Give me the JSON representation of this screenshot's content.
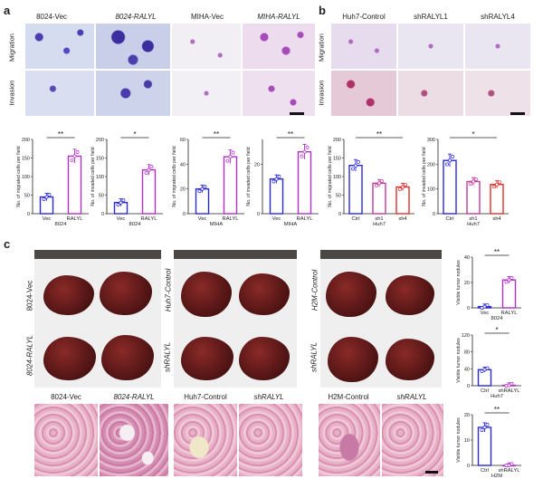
{
  "panel_a": {
    "letter": "a",
    "columns": [
      "8024-Vec",
      "8024-RALYL",
      "MIHA-Vec",
      "MIHA-RALYL"
    ],
    "rows": [
      "Migration",
      "Invasion"
    ]
  },
  "panel_b": {
    "letter": "b",
    "columns": [
      "Huh7-Control",
      "shRALYL1",
      "shRALYL4"
    ],
    "rows": [
      "Migration",
      "Invasion"
    ]
  },
  "panel_c": {
    "letter": "c",
    "groups": [
      {
        "top": "8024-Vec",
        "bottom": "8024-RALYL"
      },
      {
        "top": "Huh7-Control",
        "bottom": "shRALYL"
      },
      {
        "top": "H2M-Control",
        "bottom": "shRALYL"
      }
    ],
    "he_labels": [
      "8024-Vec",
      "8024-RALYL",
      "Huh7-Control",
      "shRALYL",
      "H2M-Control",
      "shRALYL"
    ]
  },
  "chart_data": [
    {
      "type": "bar",
      "categories": [
        "Vec",
        "RALYL"
      ],
      "values": [
        45,
        155
      ],
      "xlabel": "8024",
      "ylabel": "No. of migrated cells per field",
      "ylim": [
        0,
        200
      ],
      "sig": "**",
      "colors": [
        "#2a2ad8",
        "#b030c8"
      ]
    },
    {
      "type": "bar",
      "categories": [
        "Vec",
        "RALYL"
      ],
      "values": [
        30,
        118
      ],
      "xlabel": "8024",
      "ylabel": "No. of invaded cells per field",
      "ylim": [
        0,
        200
      ],
      "sig": "*",
      "colors": [
        "#2a2ad8",
        "#b030c8"
      ]
    },
    {
      "type": "bar",
      "categories": [
        "Vec",
        "RALYL"
      ],
      "values": [
        20,
        46
      ],
      "xlabel": "MIHA",
      "ylabel": "No. of migrated cells per field",
      "ylim": [
        0,
        60
      ],
      "sig": "**",
      "colors": [
        "#2a2ad8",
        "#b030c8"
      ]
    },
    {
      "type": "bar",
      "categories": [
        "Vec",
        "RALYL"
      ],
      "values": [
        14,
        25
      ],
      "xlabel": "MIHA",
      "ylabel": "No. of invaded cells per field",
      "ylim": [
        0,
        30
      ],
      "sig": "**",
      "colors": [
        "#2a2ad8",
        "#b030c8"
      ]
    },
    {
      "type": "bar",
      "categories": [
        "Ctrl",
        "sh1",
        "sh4"
      ],
      "values": [
        130,
        82,
        72
      ],
      "xlabel": "Huh7",
      "ylabel": "No. of migrated cells per field",
      "ylim": [
        0,
        200
      ],
      "sig": "**",
      "colors": [
        "#2a2ad8",
        "#c03aa0",
        "#e0302a"
      ]
    },
    {
      "type": "bar",
      "categories": [
        "Ctrl",
        "sh1",
        "sh4"
      ],
      "values": [
        215,
        130,
        118
      ],
      "xlabel": "Huh7",
      "ylabel": "No. of invaded cells per field",
      "ylim": [
        0,
        300
      ],
      "sig": "*",
      "colors": [
        "#2a2ad8",
        "#c03aa0",
        "#e0302a"
      ]
    },
    {
      "type": "bar",
      "categories": [
        "Vec",
        "RALYL"
      ],
      "values": [
        1,
        22
      ],
      "xlabel": "8024",
      "ylabel": "Visible tumor nodules",
      "ylim": [
        0,
        40
      ],
      "sig": "**",
      "colors": [
        "#2a2ad8",
        "#b030c8"
      ]
    },
    {
      "type": "bar",
      "categories": [
        "Ctrl",
        "shRALYL"
      ],
      "values": [
        38,
        1
      ],
      "xlabel": "Huh7",
      "ylabel": "Visible tumor nodules",
      "ylim": [
        0,
        120
      ],
      "sig": "*",
      "colors": [
        "#2a2ad8",
        "#b030c8"
      ]
    },
    {
      "type": "bar",
      "categories": [
        "Ctrl",
        "shRALYL"
      ],
      "values": [
        15,
        0
      ],
      "xlabel": "H2M",
      "ylabel": "Visible tumor nodules",
      "ylim": [
        0,
        20
      ],
      "sig": "**",
      "colors": [
        "#2a2ad8",
        "#b030c8"
      ]
    }
  ]
}
